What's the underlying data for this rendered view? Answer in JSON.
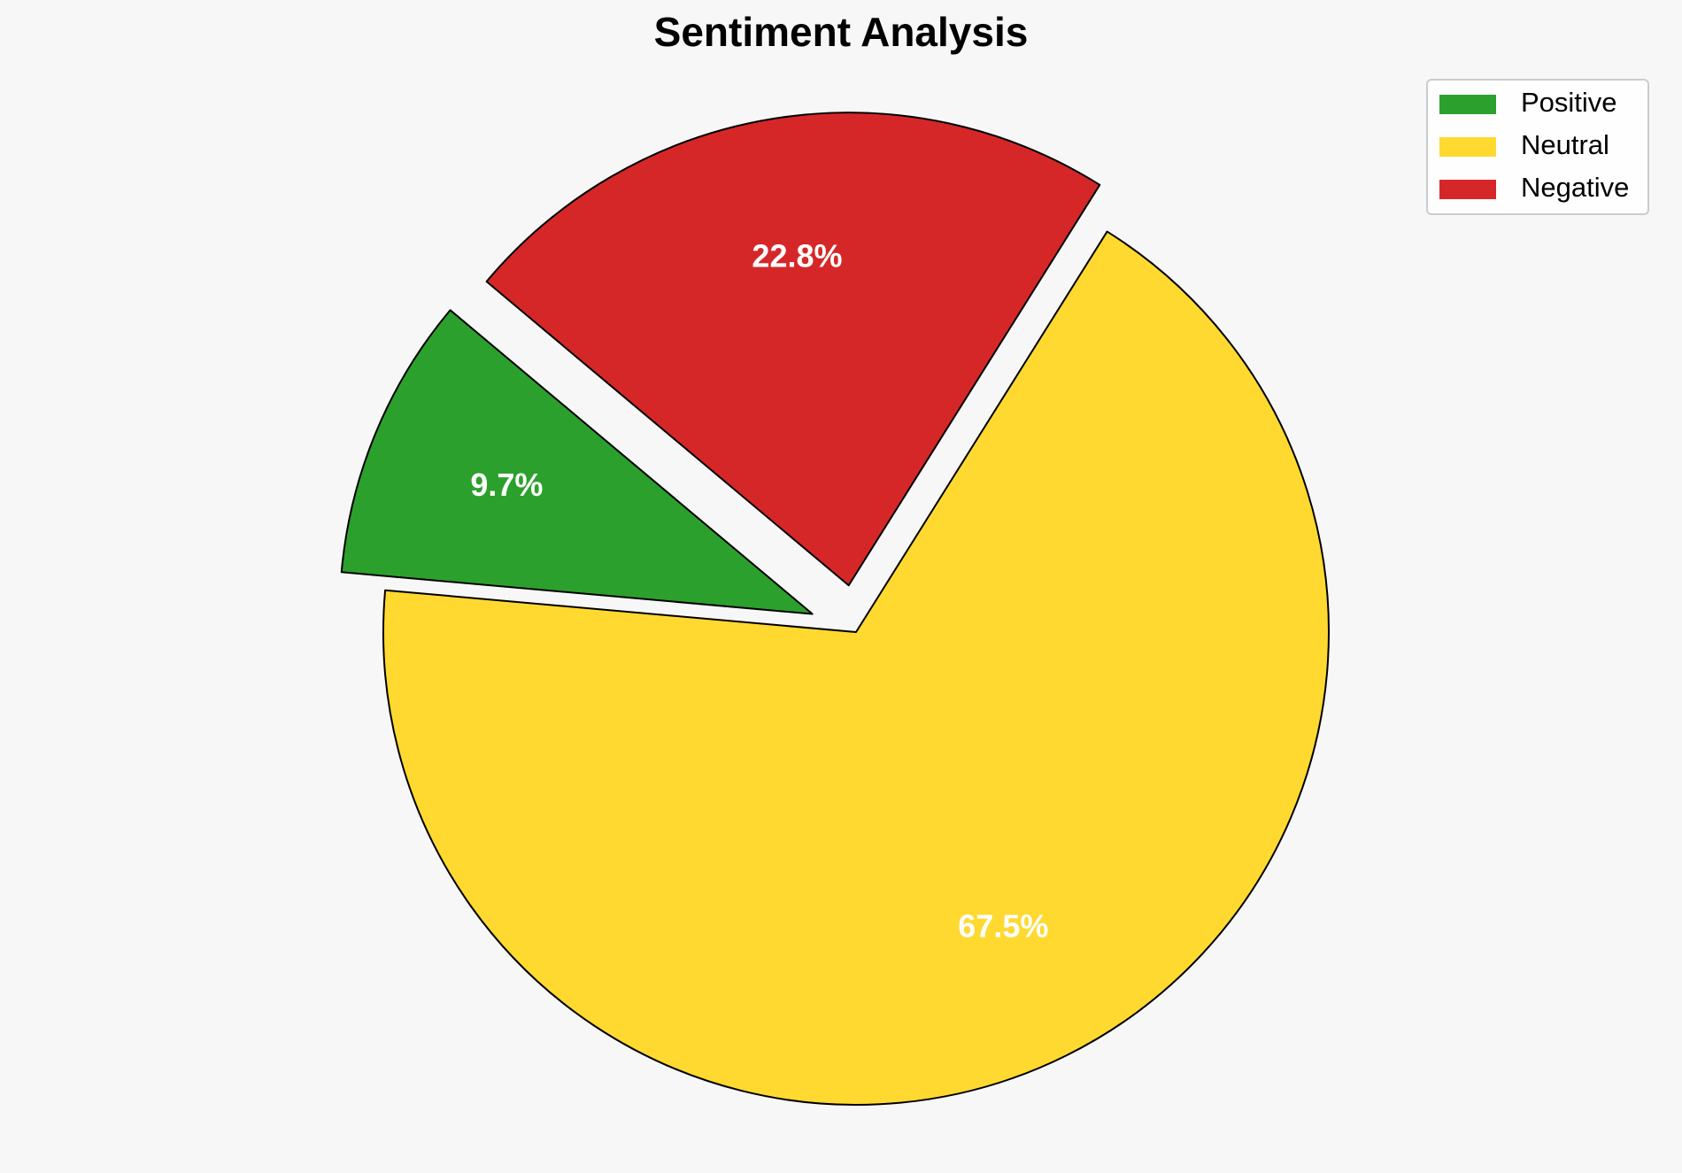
{
  "chart_data": {
    "type": "pie",
    "title": "Sentiment Analysis",
    "categories": [
      "Positive",
      "Neutral",
      "Negative"
    ],
    "values": [
      9.7,
      67.5,
      22.8
    ],
    "value_labels": [
      "9.7%",
      "67.5%",
      "22.8%"
    ],
    "colors": [
      "#2ca02c",
      "#ffd92f",
      "#d62728"
    ],
    "explode": [
      0.1,
      0,
      0.1
    ],
    "startangle": 140,
    "counterclock": true,
    "legend": "upper right"
  }
}
